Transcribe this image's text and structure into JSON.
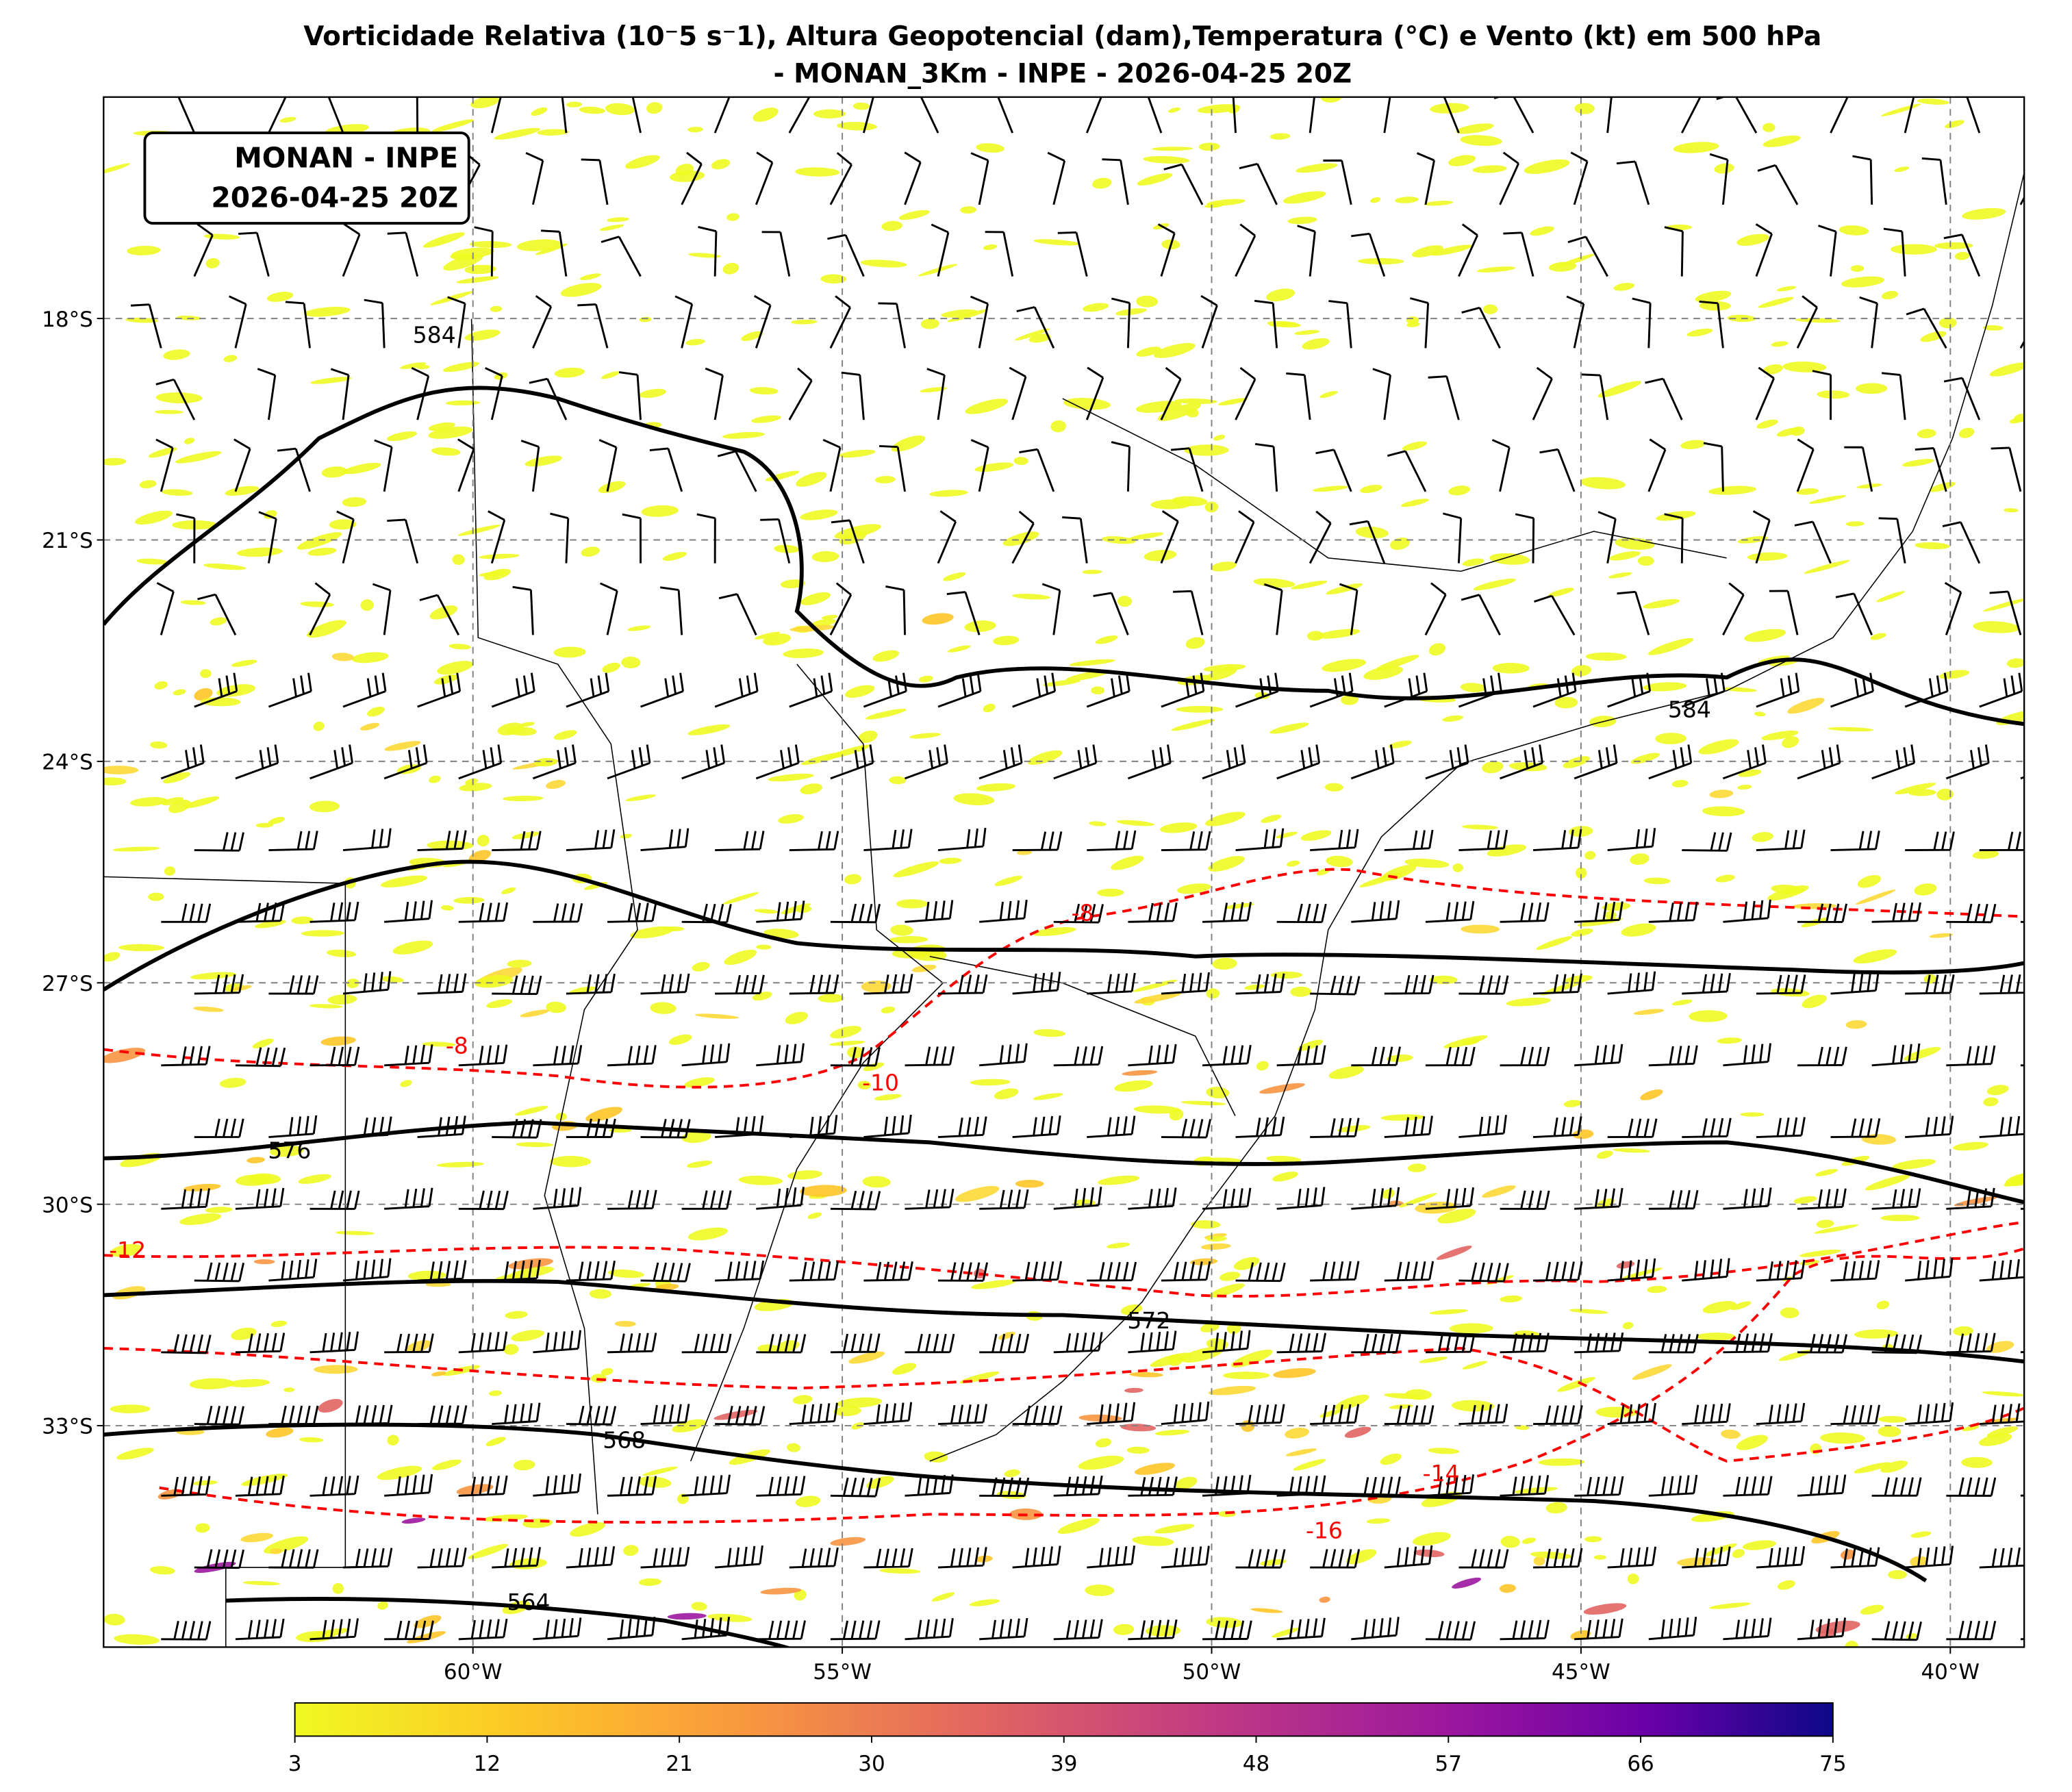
{
  "title_lines": [
    "Vorticidade Relativa (10⁻5 s⁻1), Altura Geopotencial (dam),Temperatura (°C) e Vento (kt) em 500 hPa",
    "- MONAN_3Km - INPE - 2026-04-25 20Z"
  ],
  "label_box": [
    "MONAN - INPE",
    "2026-04-25 20Z"
  ],
  "map": {
    "xlim": [
      -65,
      -39
    ],
    "ylim": [
      -36,
      -15
    ],
    "xticks": [
      {
        "value": -60,
        "label": "60°W"
      },
      {
        "value": -55,
        "label": "55°W"
      },
      {
        "value": -50,
        "label": "50°W"
      },
      {
        "value": -45,
        "label": "45°W"
      },
      {
        "value": -40,
        "label": "40°W"
      }
    ],
    "yticks": [
      {
        "value": -18,
        "label": "18°S"
      },
      {
        "value": -21,
        "label": "21°S"
      },
      {
        "value": -24,
        "label": "24°S"
      },
      {
        "value": -27,
        "label": "27°S"
      },
      {
        "value": -30,
        "label": "30°S"
      },
      {
        "value": -33,
        "label": "33°S"
      }
    ],
    "height_labels": [
      "584",
      "584",
      "576",
      "572",
      "568",
      "564"
    ],
    "temperature_labels": [
      "-8",
      "-8",
      "-10",
      "-12",
      "-14",
      "-16"
    ]
  },
  "colorbar": {
    "range": [
      3,
      75
    ],
    "ticks": [
      3,
      12,
      21,
      30,
      39,
      48,
      57,
      66,
      75
    ]
  }
}
